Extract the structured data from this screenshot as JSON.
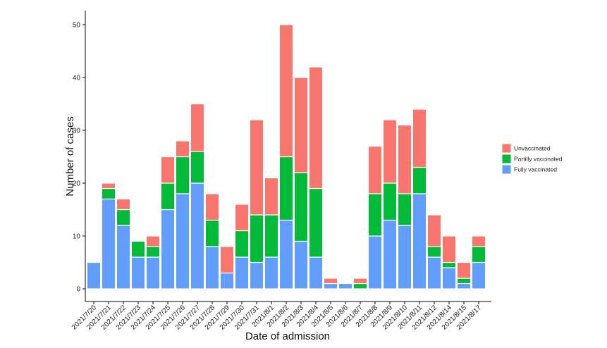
{
  "chart_data": {
    "type": "bar",
    "stacked": true,
    "xlabel": "Date of admission",
    "ylabel": "Number of cases",
    "ylim": [
      0,
      52
    ],
    "yticks": [
      0,
      10,
      20,
      30,
      40,
      50
    ],
    "grid": false,
    "legend_position": "right",
    "categories": [
      "2021/7/20",
      "2021/7/21",
      "2021/7/22",
      "2021/7/23",
      "2021/7/24",
      "2021/7/25",
      "2021/7/26",
      "2021/7/27",
      "2021/7/28",
      "2021/7/29",
      "2021/7/30",
      "2021/7/31",
      "2021/8/1",
      "2021/8/2",
      "2021/8/3",
      "2021/8/4",
      "2021/8/5",
      "2021/8/6",
      "2021/8/7",
      "2021/8/8",
      "2021/8/9",
      "2021/8/10",
      "2021/8/11",
      "2021/8/12",
      "2021/8/14",
      "2021/8/15",
      "2021/8/17"
    ],
    "series": [
      {
        "name": "Fully vaccinated",
        "color": "#619CFF",
        "values": [
          5,
          17,
          12,
          6,
          6,
          15,
          18,
          20,
          8,
          3,
          6,
          5,
          6,
          13,
          9,
          6,
          1,
          1,
          0,
          10,
          13,
          12,
          18,
          6,
          4,
          1,
          5
        ]
      },
      {
        "name": "Partilly vaccinated",
        "color": "#00BA38",
        "values": [
          0,
          2,
          3,
          3,
          2,
          5,
          7,
          6,
          5,
          0,
          5,
          9,
          8,
          12,
          13,
          13,
          0,
          0,
          1,
          8,
          7,
          6,
          5,
          2,
          1,
          1,
          3
        ]
      },
      {
        "name": "Unvaccinated",
        "color": "#F8766D",
        "values": [
          0,
          1,
          2,
          0,
          2,
          5,
          3,
          9,
          5,
          5,
          5,
          18,
          7,
          25,
          18,
          23,
          1,
          0,
          1,
          9,
          12,
          13,
          11,
          6,
          5,
          3,
          2
        ]
      }
    ],
    "legend_order": [
      "Unvaccinated",
      "Partilly vaccinated",
      "Fully vaccinated"
    ]
  }
}
